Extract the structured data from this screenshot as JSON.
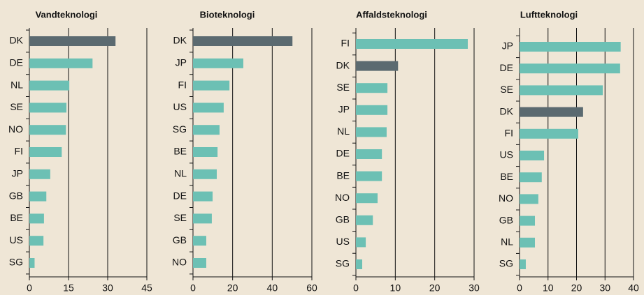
{
  "chart_data": [
    {
      "type": "bar",
      "title": "Vandteknologi",
      "categories": [
        "DK",
        "DE",
        "NL",
        "SE",
        "NO",
        "FI",
        "JP",
        "GB",
        "BE",
        "US",
        "SG"
      ],
      "values": [
        33,
        24.2,
        15.3,
        14.2,
        14,
        12.4,
        8,
        6.5,
        5.6,
        5.4,
        2
      ],
      "colors": [
        "#5b6a70",
        "#6cc0b4",
        "#6cc0b4",
        "#6cc0b4",
        "#6cc0b4",
        "#6cc0b4",
        "#6cc0b4",
        "#6cc0b4",
        "#6cc0b4",
        "#6cc0b4",
        "#6cc0b4"
      ],
      "xlim": [
        0,
        45
      ],
      "xticks": [
        0,
        15,
        30,
        45
      ],
      "grid": true
    },
    {
      "type": "bar",
      "title": "Bioteknologi",
      "categories": [
        "DK",
        "JP",
        "FI",
        "US",
        "SG",
        "BE",
        "NL",
        "DE",
        "SE",
        "GB",
        "NO"
      ],
      "values": [
        50.2,
        25.4,
        18.4,
        15.5,
        13.4,
        12.4,
        12,
        9.9,
        9.5,
        6.7,
        6.7
      ],
      "colors": [
        "#5b6a70",
        "#6cc0b4",
        "#6cc0b4",
        "#6cc0b4",
        "#6cc0b4",
        "#6cc0b4",
        "#6cc0b4",
        "#6cc0b4",
        "#6cc0b4",
        "#6cc0b4",
        "#6cc0b4"
      ],
      "xlim": [
        0,
        60
      ],
      "xticks": [
        0,
        20,
        40,
        60
      ],
      "grid": true
    },
    {
      "type": "bar",
      "title": "Affaldsteknologi",
      "categories": [
        "FI",
        "DK",
        "SE",
        "JP",
        "NL",
        "DE",
        "BE",
        "NO",
        "GB",
        "US",
        "SG"
      ],
      "values": [
        28.4,
        10.7,
        8,
        8,
        7.8,
        6.6,
        6.6,
        5.5,
        4.3,
        2.5,
        1.6
      ],
      "colors": [
        "#6cc0b4",
        "#5b6a70",
        "#6cc0b4",
        "#6cc0b4",
        "#6cc0b4",
        "#6cc0b4",
        "#6cc0b4",
        "#6cc0b4",
        "#6cc0b4",
        "#6cc0b4",
        "#6cc0b4"
      ],
      "xlim": [
        0,
        30
      ],
      "xticks": [
        0,
        10,
        20,
        30
      ],
      "grid": true
    },
    {
      "type": "bar",
      "title": "Luftteknologi",
      "categories": [
        "JP",
        "DE",
        "SE",
        "DK",
        "FI",
        "US",
        "BE",
        "NO",
        "GB",
        "NL",
        "SG"
      ],
      "values": [
        35.5,
        35.3,
        29.2,
        22.3,
        20.6,
        8.6,
        7.8,
        6.6,
        5.4,
        5.4,
        2.2
      ],
      "colors": [
        "#6cc0b4",
        "#6cc0b4",
        "#6cc0b4",
        "#5b6a70",
        "#6cc0b4",
        "#6cc0b4",
        "#6cc0b4",
        "#6cc0b4",
        "#6cc0b4",
        "#6cc0b4",
        "#6cc0b4"
      ],
      "xlim": [
        0,
        40
      ],
      "xticks": [
        0,
        10,
        20,
        30,
        40
      ],
      "grid": true
    }
  ]
}
